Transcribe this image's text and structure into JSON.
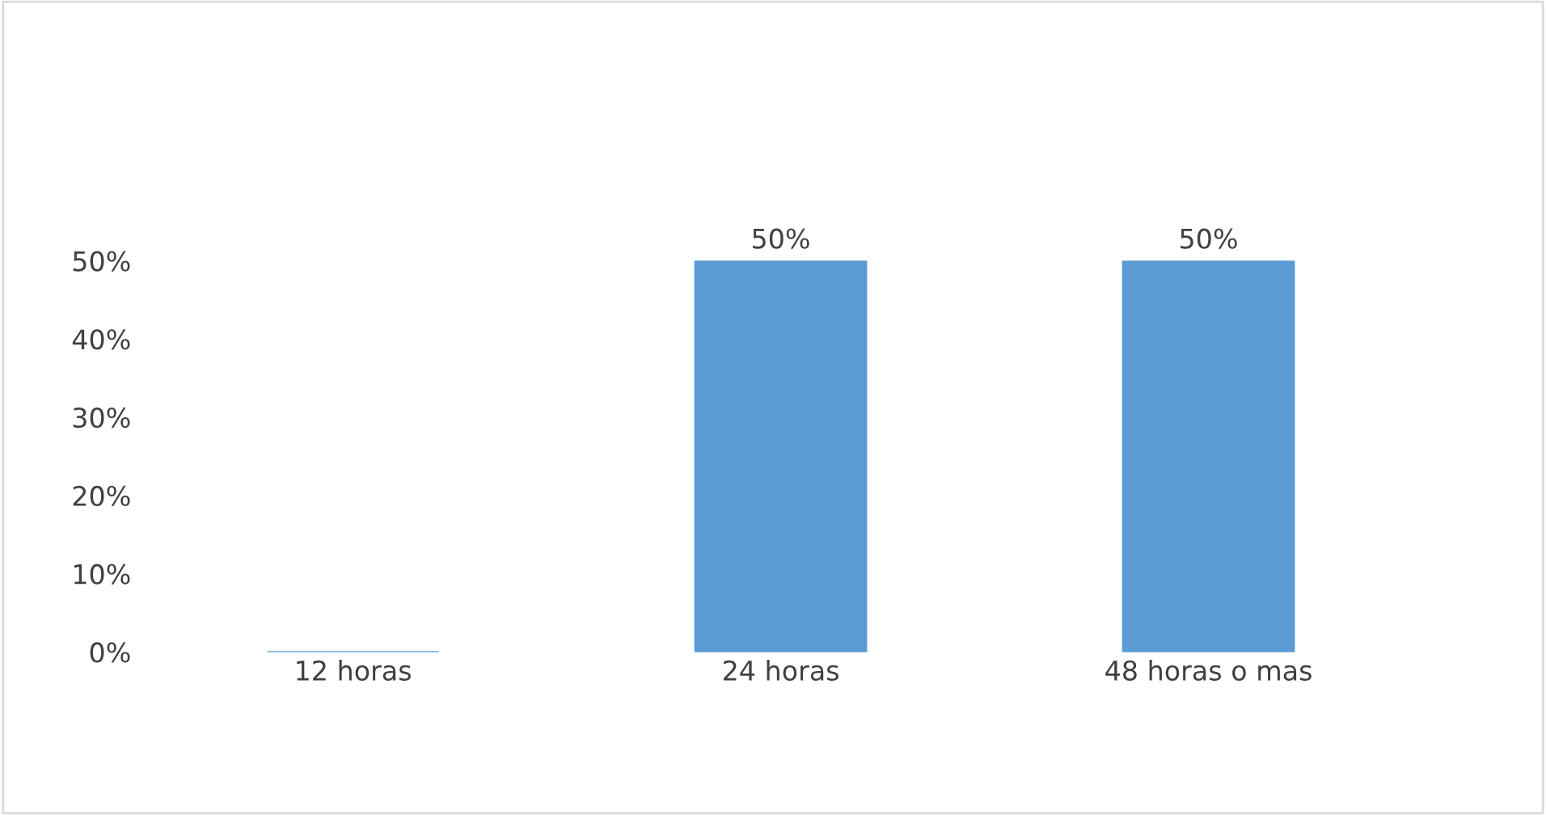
{
  "chart_data": {
    "type": "bar",
    "categories": [
      "12 horas",
      "24 horas",
      "48 horas o mas"
    ],
    "values": [
      0,
      50,
      50
    ],
    "color": "#5b9bd5",
    "value_labels": [
      null,
      "50%",
      "50%"
    ],
    "ylim": [
      0,
      50
    ],
    "yticks": [
      {
        "value": 0,
        "label": "0%"
      },
      {
        "value": 10,
        "label": "10%"
      },
      {
        "value": 20,
        "label": "20%"
      },
      {
        "value": 30,
        "label": "30%"
      },
      {
        "value": 40,
        "label": "40%"
      },
      {
        "value": 50,
        "label": "50%"
      }
    ],
    "grid": false
  }
}
